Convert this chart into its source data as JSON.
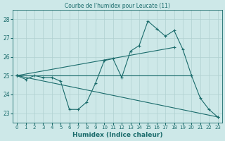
{
  "title": "Courbe de l'humidex pour Leucate (11)",
  "xlabel": "Humidex (Indice chaleur)",
  "bg_color": "#cde8e8",
  "line_color": "#1a6b6b",
  "grid_color": "#b0d0d0",
  "xlim": [
    -0.5,
    23.5
  ],
  "ylim": [
    22.5,
    28.5
  ],
  "yticks": [
    23,
    24,
    25,
    26,
    27,
    28
  ],
  "xticks": [
    0,
    1,
    2,
    3,
    4,
    5,
    6,
    7,
    8,
    9,
    10,
    11,
    12,
    13,
    14,
    15,
    16,
    17,
    18,
    19,
    20,
    21,
    22,
    23
  ],
  "series_zigzag": [
    25.0,
    24.8,
    25.0,
    24.9,
    24.9,
    24.7,
    23.2,
    23.2,
    23.6,
    24.6,
    25.8,
    25.9,
    24.9,
    26.3,
    26.6,
    27.9,
    27.5,
    27.1,
    27.4,
    26.4,
    25.0,
    23.8,
    23.2,
    22.8
  ],
  "series_flat": [
    [
      0,
      25.0
    ],
    [
      20,
      25.0
    ]
  ],
  "series_up": [
    [
      0,
      25.0
    ],
    [
      18,
      26.5
    ]
  ],
  "series_down": [
    [
      0,
      25.0
    ],
    [
      23,
      22.8
    ]
  ]
}
